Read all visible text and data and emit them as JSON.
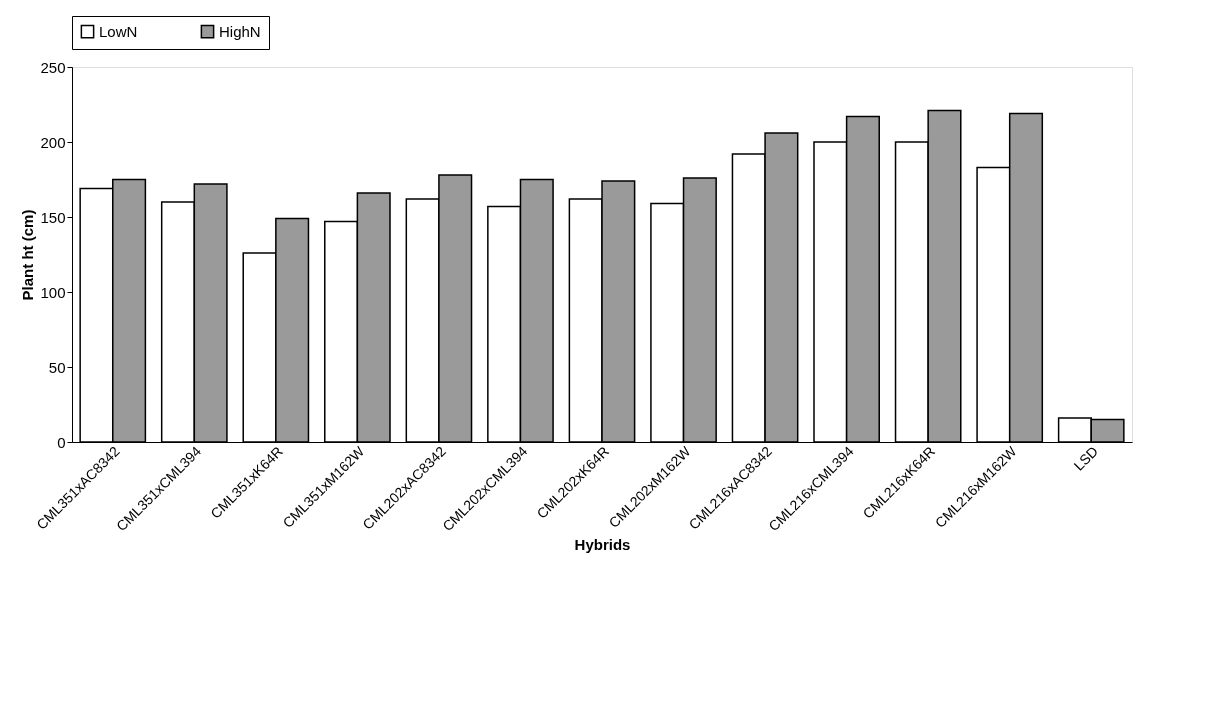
{
  "chart_data": {
    "type": "bar",
    "xlabel": "Hybrids",
    "ylabel": "Plant ht (cm)",
    "categories": [
      "CML351xAC8342",
      "CML351xCML394",
      "CML351xK64R",
      "CML351xM162W",
      "CML202xAC8342",
      "CML202xCML394",
      "CML202xK64R",
      "CML202xM162W",
      "CML216xAC8342",
      "CML216xCML394",
      "CML216xK64R",
      "CML216xM162W",
      "LSD"
    ],
    "series": [
      {
        "name": "LowN",
        "color": "#ffffff",
        "values": [
          169,
          160,
          126,
          147,
          162,
          157,
          162,
          159,
          192,
          200,
          200,
          183,
          16
        ]
      },
      {
        "name": "HighN",
        "color": "#9a9a9a",
        "values": [
          175,
          172,
          149,
          166,
          178,
          175,
          174,
          176,
          206,
          217,
          221,
          219,
          15
        ]
      }
    ],
    "ylim": [
      0,
      250
    ],
    "yticks": [
      0,
      50,
      100,
      150,
      200,
      250
    ],
    "grid": false,
    "legend": "top"
  }
}
